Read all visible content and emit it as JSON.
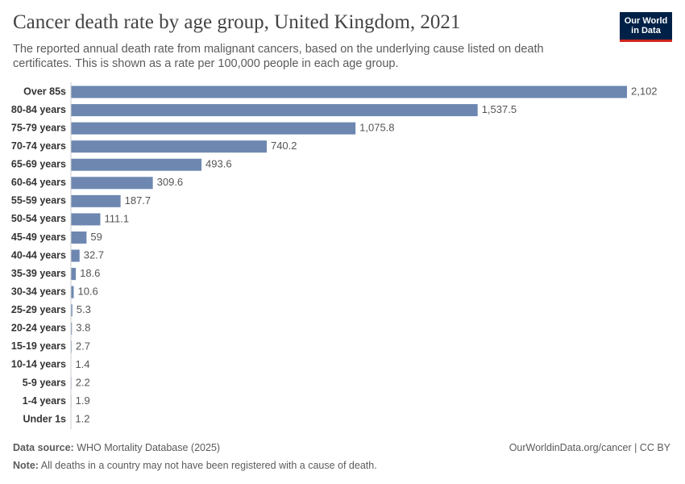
{
  "chart_data": {
    "type": "bar",
    "orientation": "horizontal",
    "title": "Cancer death rate by age group, United Kingdom, 2021",
    "subtitle": "The reported annual death rate from malignant cancers, based on the underlying cause listed on death certificates. This is shown as a rate per 100,000 people in each age group.",
    "logo": [
      "Our World",
      "in Data"
    ],
    "categories": [
      "Over 85s",
      "80-84 years",
      "75-79 years",
      "70-74 years",
      "65-69 years",
      "60-64 years",
      "55-59 years",
      "50-54 years",
      "45-49 years",
      "40-44 years",
      "35-39 years",
      "30-34 years",
      "25-29 years",
      "20-24 years",
      "15-19 years",
      "10-14 years",
      "5-9 years",
      "1-4 years",
      "Under 1s"
    ],
    "values": [
      2102,
      1537.5,
      1075.8,
      740.2,
      493.6,
      309.6,
      187.7,
      111.1,
      59,
      32.7,
      18.6,
      10.6,
      5.3,
      3.8,
      2.7,
      1.4,
      2.2,
      1.9,
      1.2
    ],
    "value_labels": [
      "2,102",
      "1,537.5",
      "1,075.8",
      "740.2",
      "493.6",
      "309.6",
      "187.7",
      "111.1",
      "59",
      "32.7",
      "18.6",
      "10.6",
      "5.3",
      "3.8",
      "2.7",
      "1.4",
      "2.2",
      "1.9",
      "1.2"
    ],
    "color": "#6d87b0",
    "source_label": "Data source:",
    "source": "WHO Mortality Database (2025)",
    "credit": "OurWorldinData.org/cancer | CC BY",
    "note_label": "Note:",
    "note": "All deaths in a country may not have been registered with a cause of death."
  }
}
